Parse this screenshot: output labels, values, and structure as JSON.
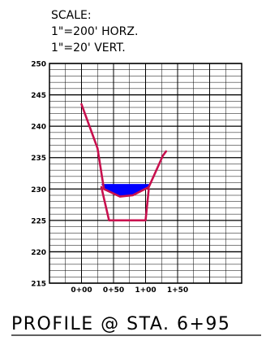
{
  "scale_note": {
    "line1": "SCALE:",
    "line2": "1\"=200' HORZ.",
    "line3": "1\"=20' VERT."
  },
  "title": "PROFILE @ STA. 6+95",
  "colors": {
    "grid": "#000000",
    "ground_line": "#c8104e",
    "channel_line": "#c8104e",
    "water_fill": "#0000ff",
    "background": "#ffffff"
  },
  "chart_data": {
    "type": "line",
    "x_axis": {
      "min": -0.5,
      "max": 2.5,
      "minor_step": 0.25,
      "ticks": [
        {
          "value": 0.0,
          "label": "0+00"
        },
        {
          "value": 0.5,
          "label": "0+50"
        },
        {
          "value": 1.0,
          "label": "1+00"
        },
        {
          "value": 1.5,
          "label": "1+50"
        }
      ]
    },
    "y_axis": {
      "min": 215,
      "max": 250,
      "minor_step": 1,
      "ticks": [
        {
          "value": 250,
          "label": "250"
        },
        {
          "value": 245,
          "label": "245"
        },
        {
          "value": 240,
          "label": "240"
        },
        {
          "value": 235,
          "label": "235"
        },
        {
          "value": 230,
          "label": "230"
        },
        {
          "value": 225,
          "label": "225"
        },
        {
          "value": 220,
          "label": "220"
        },
        {
          "value": 215,
          "label": "215"
        }
      ]
    },
    "grid": true,
    "existing_ground": [
      {
        "x": 0.0,
        "y": 243.5
      },
      {
        "x": 0.25,
        "y": 236.5
      },
      {
        "x": 0.35,
        "y": 230.0
      },
      {
        "x": 0.6,
        "y": 228.8
      },
      {
        "x": 0.8,
        "y": 229.0
      },
      {
        "x": 1.05,
        "y": 230.3
      },
      {
        "x": 1.27,
        "y": 235.3
      },
      {
        "x": 1.32,
        "y": 236.0
      }
    ],
    "proposed_channel": [
      {
        "x": 0.31,
        "y": 230.3
      },
      {
        "x": 0.43,
        "y": 225.0
      },
      {
        "x": 1.0,
        "y": 225.0
      },
      {
        "x": 1.05,
        "y": 230.0
      }
    ],
    "water_surface_elevation": 230.8
  }
}
